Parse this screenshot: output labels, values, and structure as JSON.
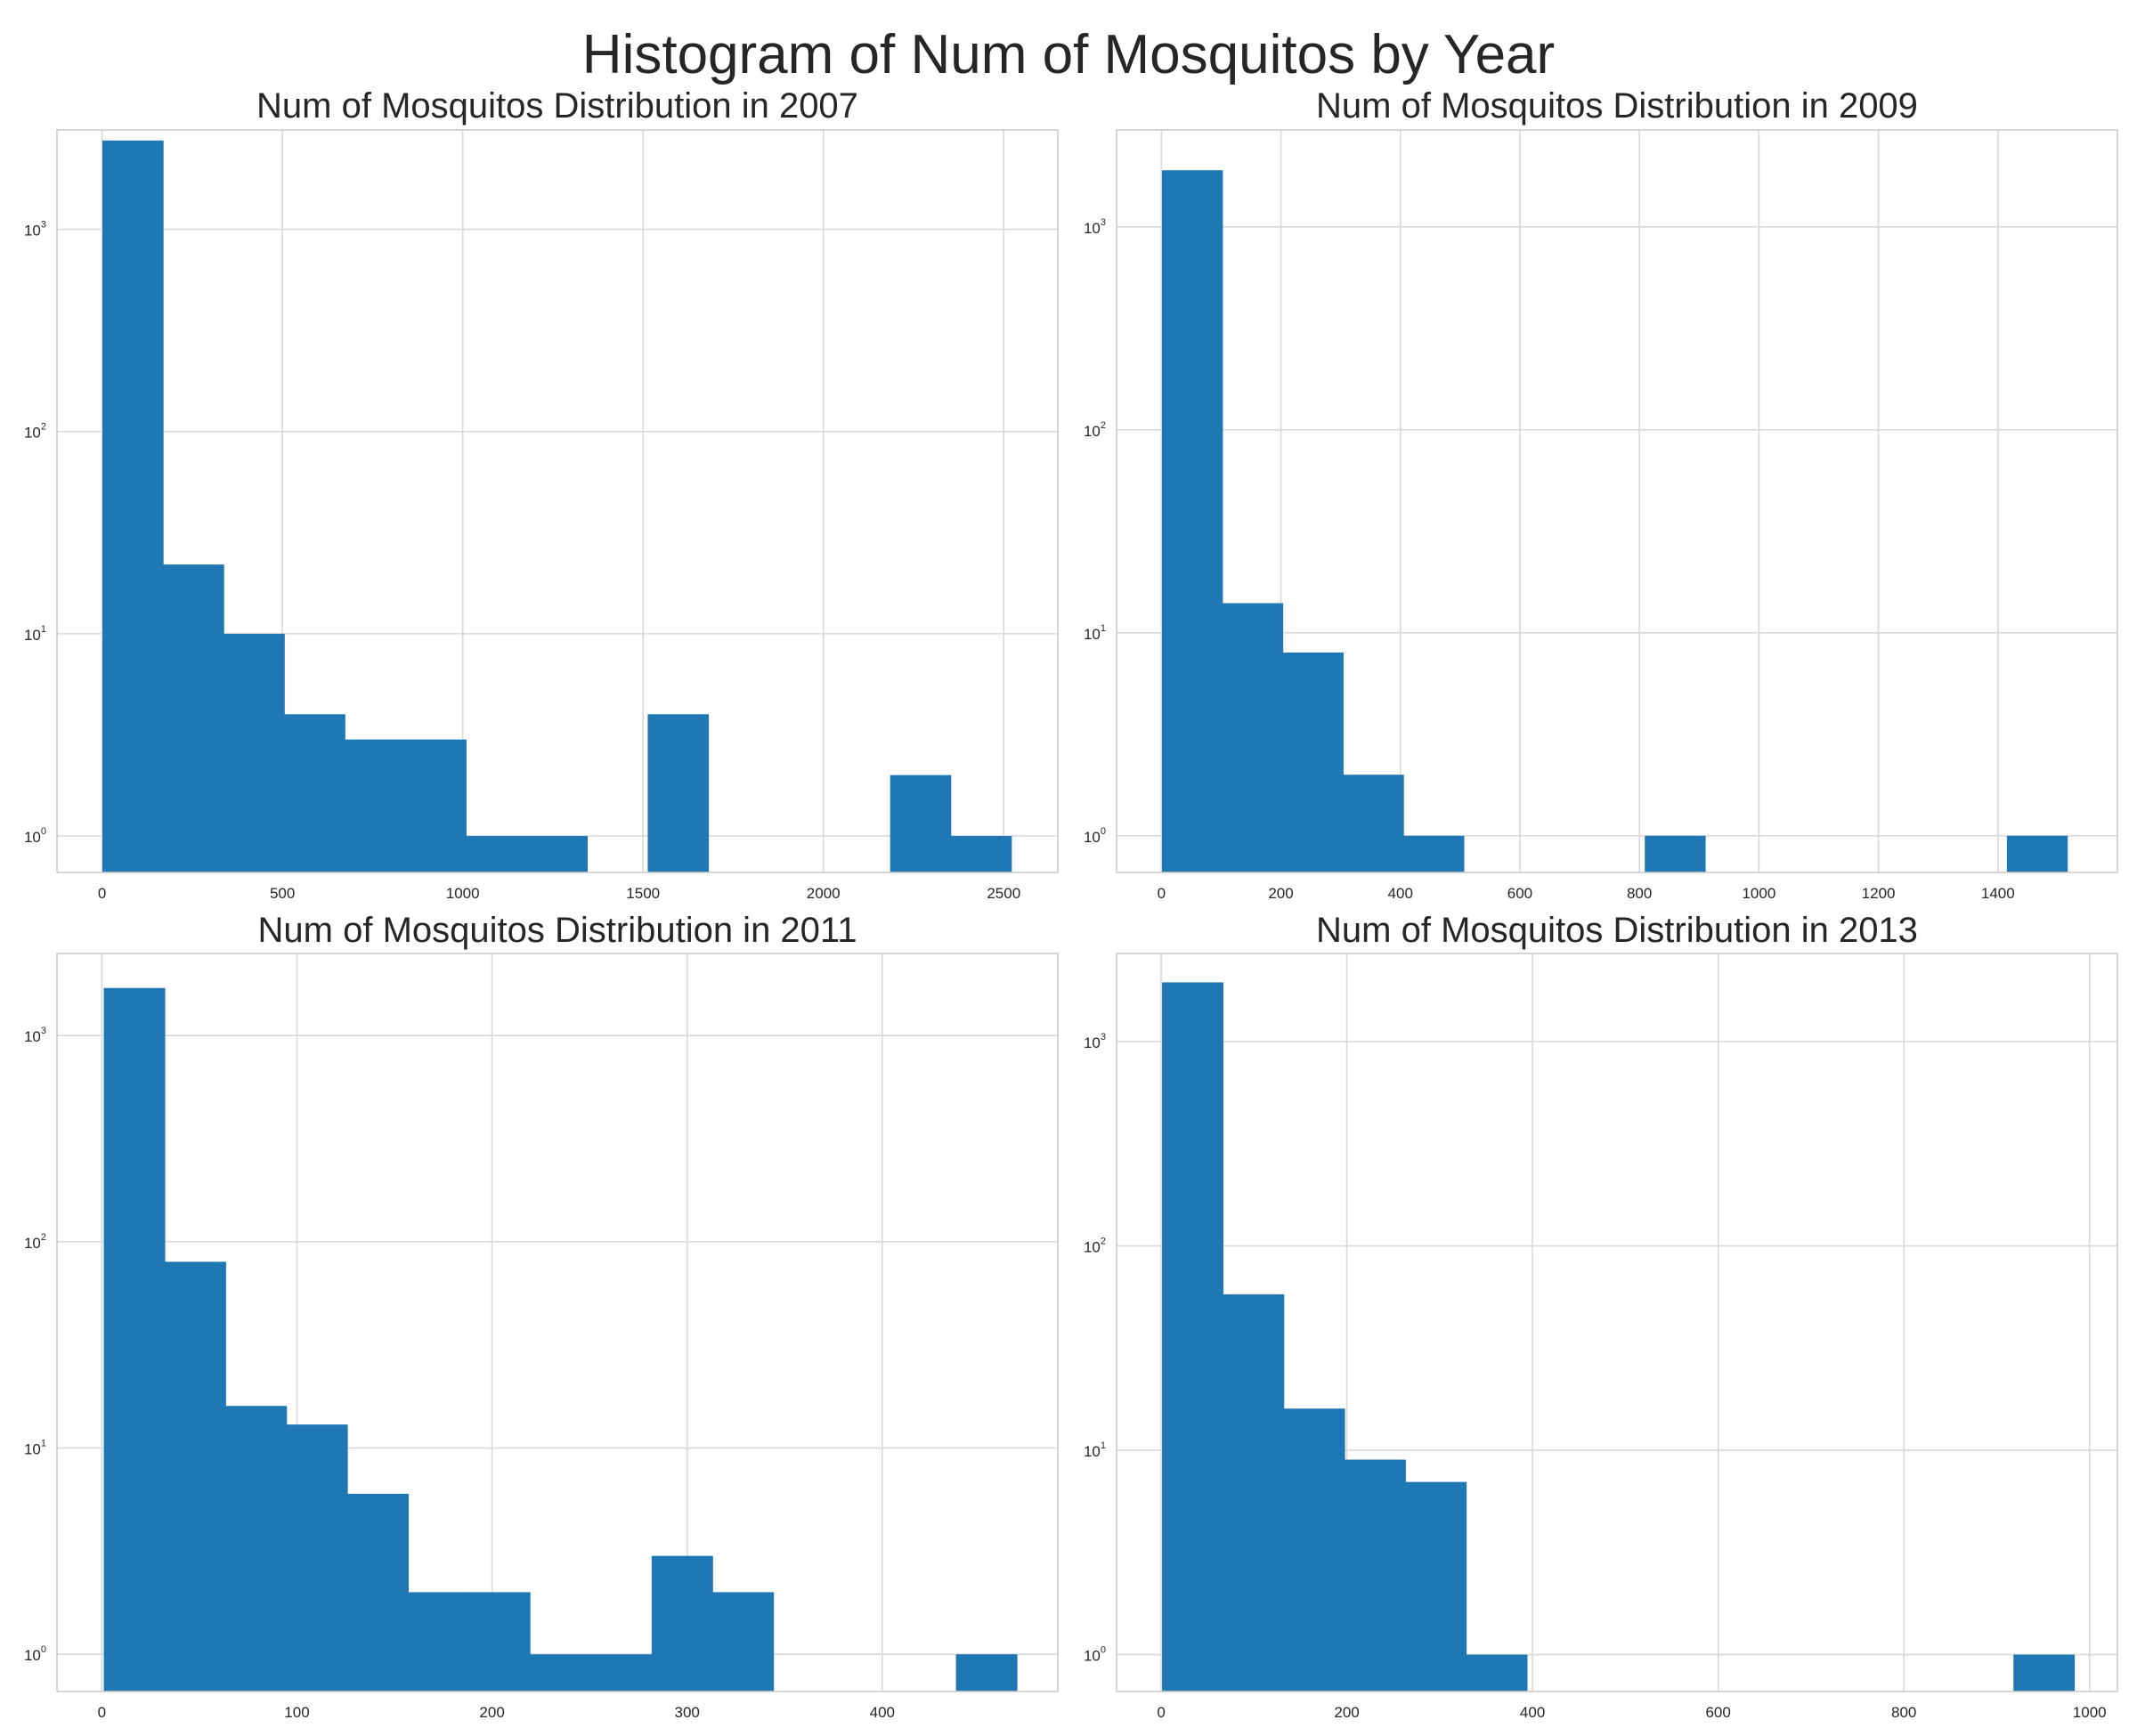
{
  "figure": {
    "title": "Histogram of Num of Mosquitos by Year"
  },
  "colors": {
    "bar": "#1f77b4",
    "grid": "#d9d9d9",
    "spine": "#cccccc",
    "text": "#262626"
  },
  "chart_data": [
    {
      "type": "bar",
      "title": "Num of Mosquitos Distribution in 2007",
      "xlabel": "",
      "ylabel": "",
      "log_y": true,
      "grid": true,
      "xlim": [
        -125,
        2650
      ],
      "ylim": [
        0.66,
        3100
      ],
      "x_ticks": [
        0,
        500,
        1000,
        1500,
        2000,
        2500
      ],
      "y_ticks": [
        1,
        10,
        100,
        1000
      ],
      "y_tick_labels": [
        {
          "base": "10",
          "exp": "0"
        },
        {
          "base": "10",
          "exp": "1"
        },
        {
          "base": "10",
          "exp": "2"
        },
        {
          "base": "10",
          "exp": "3"
        }
      ],
      "bin_edges": [
        1,
        169,
        337,
        505,
        673,
        841,
        1009,
        1177,
        1345,
        1513,
        1681,
        1849,
        2017,
        2185,
        2353,
        2521
      ],
      "counts": [
        2750,
        22,
        10,
        4,
        3,
        3,
        1,
        1,
        0,
        4,
        0,
        0,
        0,
        2,
        1
      ]
    },
    {
      "type": "bar",
      "title": "Num of Mosquitos Distribution in 2009",
      "xlabel": "",
      "ylabel": "",
      "log_y": true,
      "grid": true,
      "xlim": [
        -75,
        1600
      ],
      "ylim": [
        0.66,
        3000
      ],
      "x_ticks": [
        0,
        200,
        400,
        600,
        800,
        1000,
        1200,
        1400
      ],
      "y_ticks": [
        1,
        10,
        100,
        1000
      ],
      "y_tick_labels": [
        {
          "base": "10",
          "exp": "0"
        },
        {
          "base": "10",
          "exp": "1"
        },
        {
          "base": "10",
          "exp": "2"
        },
        {
          "base": "10",
          "exp": "3"
        }
      ],
      "bin_edges": [
        1,
        102,
        203,
        304,
        405,
        506,
        607,
        708,
        809,
        910,
        1011,
        1112,
        1213,
        1314,
        1415,
        1516
      ],
      "counts": [
        1900,
        14,
        8,
        2,
        1,
        0,
        0,
        0,
        1,
        0,
        0,
        0,
        0,
        0,
        1
      ]
    },
    {
      "type": "bar",
      "title": "Num of Mosquitos Distribution in 2011",
      "xlabel": "",
      "ylabel": "",
      "log_y": true,
      "grid": true,
      "xlim": [
        -23,
        490
      ],
      "ylim": [
        0.66,
        2500
      ],
      "x_ticks": [
        0,
        100,
        200,
        300,
        400
      ],
      "y_ticks": [
        1,
        10,
        100,
        1000
      ],
      "y_tick_labels": [
        {
          "base": "10",
          "exp": "0"
        },
        {
          "base": "10",
          "exp": "1"
        },
        {
          "base": "10",
          "exp": "2"
        },
        {
          "base": "10",
          "exp": "3"
        }
      ],
      "bin_edges": [
        1,
        32.2,
        63.4,
        94.6,
        125.8,
        157,
        188.2,
        219.4,
        250.6,
        281.8,
        313,
        344.2,
        375.4,
        406.6,
        437.8,
        469
      ],
      "counts": [
        1700,
        80,
        16,
        13,
        6,
        2,
        2,
        1,
        1,
        3,
        2,
        0,
        0,
        0,
        1
      ]
    },
    {
      "type": "bar",
      "title": "Num of Mosquitos Distribution in 2013",
      "xlabel": "",
      "ylabel": "",
      "log_y": true,
      "grid": true,
      "xlim": [
        -48,
        1030
      ],
      "ylim": [
        0.66,
        2700
      ],
      "x_ticks": [
        0,
        200,
        400,
        600,
        800,
        1000
      ],
      "y_ticks": [
        1,
        10,
        100,
        1000
      ],
      "y_tick_labels": [
        {
          "base": "10",
          "exp": "0"
        },
        {
          "base": "10",
          "exp": "1"
        },
        {
          "base": "10",
          "exp": "2"
        },
        {
          "base": "10",
          "exp": "3"
        }
      ],
      "bin_edges": [
        1,
        66.5,
        132,
        197.5,
        263,
        328.5,
        394,
        459.5,
        525,
        590.5,
        656,
        721.5,
        787,
        852.5,
        918,
        983.5
      ],
      "counts": [
        1950,
        58,
        16,
        9,
        7,
        1,
        0,
        0,
        0,
        0,
        0,
        0,
        0,
        0,
        1
      ]
    }
  ]
}
